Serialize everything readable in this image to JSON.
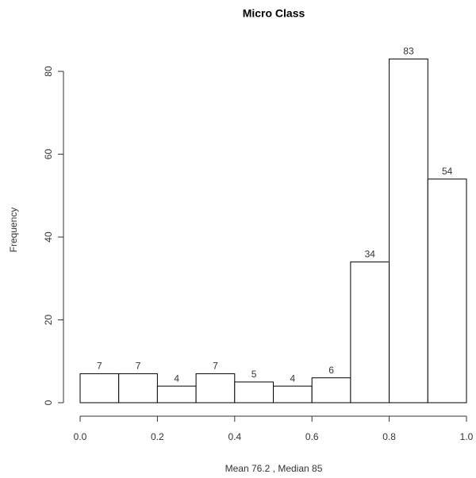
{
  "chart_data": {
    "type": "histogram",
    "title": "Micro Class",
    "x_label": "Mean 76.2 , Median 85",
    "y_label": "Frequency",
    "bins": [
      0,
      0.1,
      0.2,
      0.3,
      0.4,
      0.5,
      0.6,
      0.7,
      0.8,
      0.9,
      1.0
    ],
    "values": [
      7,
      7,
      4,
      7,
      5,
      4,
      6,
      34,
      83,
      54
    ],
    "color": "#ffffff",
    "edge_color": "#000000",
    "xlim": [
      0,
      1
    ],
    "xticks": [
      {
        "value": 0,
        "label": "0.0"
      },
      0.2,
      0.4,
      0.6,
      0.8,
      {
        "value": 1,
        "label": "1.0"
      }
    ],
    "ylim": [
      0,
      86
    ],
    "yticks": [
      0,
      20,
      40,
      60,
      80
    ]
  }
}
